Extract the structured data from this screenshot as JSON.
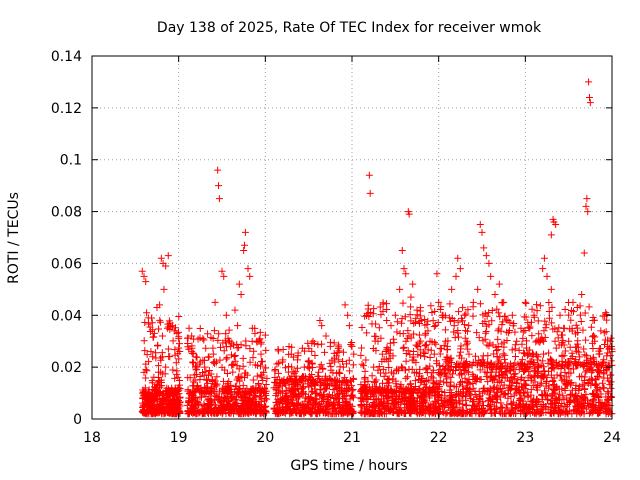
{
  "chart_data": {
    "type": "scatter",
    "title": "Day 138 of 2025, Rate Of TEC Index for receiver wmok",
    "xlabel": "GPS time / hours",
    "ylabel": "ROTI / TECUs",
    "xlim": [
      18,
      24
    ],
    "ylim": [
      0,
      0.14
    ],
    "x_ticks": [
      18,
      19,
      20,
      21,
      22,
      23,
      24
    ],
    "x_tick_labels": [
      "18",
      "19",
      "20",
      "21",
      "22",
      "23",
      "24"
    ],
    "y_ticks": [
      0,
      0.02,
      0.04,
      0.06,
      0.08,
      0.1,
      0.12,
      0.14
    ],
    "y_tick_labels": [
      "0",
      "0.02",
      "0.04",
      "0.06",
      "0.08",
      "0.1",
      "0.12",
      "0.14"
    ],
    "grid": true,
    "marker": "plus",
    "color": "#ff0000",
    "series": [
      {
        "points": [
          [
            18.58,
            0.057
          ],
          [
            18.6,
            0.055
          ],
          [
            18.62,
            0.053
          ],
          [
            18.6,
            0.018
          ],
          [
            18.63,
            0.041
          ],
          [
            18.65,
            0.039
          ],
          [
            18.68,
            0.026
          ],
          [
            18.7,
            0.024
          ],
          [
            18.72,
            0.033
          ],
          [
            18.75,
            0.043
          ],
          [
            18.78,
            0.044
          ],
          [
            18.8,
            0.062
          ],
          [
            18.82,
            0.06
          ],
          [
            18.85,
            0.059
          ],
          [
            18.88,
            0.063
          ],
          [
            18.83,
            0.05
          ],
          [
            18.87,
            0.035
          ],
          [
            18.9,
            0.037
          ],
          [
            18.93,
            0.036
          ],
          [
            18.95,
            0.034
          ],
          [
            18.98,
            0.033
          ],
          [
            19.0,
            0.031
          ],
          [
            18.75,
            0.012
          ],
          [
            18.65,
            0.01
          ],
          [
            18.7,
            0.008
          ],
          [
            18.9,
            0.011
          ],
          [
            18.95,
            0.009
          ],
          [
            19.0,
            0.012
          ],
          [
            18.85,
            0.02
          ],
          [
            18.8,
            0.015
          ],
          [
            19.12,
            0.035
          ],
          [
            19.15,
            0.032
          ],
          [
            19.2,
            0.019
          ],
          [
            19.25,
            0.022
          ],
          [
            19.3,
            0.02
          ],
          [
            19.35,
            0.024
          ],
          [
            19.4,
            0.025
          ],
          [
            19.42,
            0.045
          ],
          [
            19.45,
            0.096
          ],
          [
            19.46,
            0.09
          ],
          [
            19.47,
            0.085
          ],
          [
            19.5,
            0.057
          ],
          [
            19.52,
            0.055
          ],
          [
            19.55,
            0.04
          ],
          [
            19.58,
            0.03
          ],
          [
            19.6,
            0.028
          ],
          [
            19.65,
            0.042
          ],
          [
            19.68,
            0.036
          ],
          [
            19.7,
            0.052
          ],
          [
            19.72,
            0.048
          ],
          [
            19.75,
            0.065
          ],
          [
            19.76,
            0.067
          ],
          [
            19.77,
            0.072
          ],
          [
            19.8,
            0.058
          ],
          [
            19.82,
            0.055
          ],
          [
            19.85,
            0.035
          ],
          [
            19.88,
            0.033
          ],
          [
            19.9,
            0.03
          ],
          [
            19.95,
            0.025
          ],
          [
            19.98,
            0.018
          ],
          [
            20.1,
            0.012
          ],
          [
            20.15,
            0.01
          ],
          [
            20.2,
            0.014
          ],
          [
            20.3,
            0.025
          ],
          [
            20.35,
            0.015
          ],
          [
            20.45,
            0.02
          ],
          [
            20.55,
            0.03
          ],
          [
            20.63,
            0.038
          ],
          [
            20.65,
            0.036
          ],
          [
            20.7,
            0.032
          ],
          [
            20.75,
            0.028
          ],
          [
            20.8,
            0.022
          ],
          [
            20.85,
            0.018
          ],
          [
            20.9,
            0.02
          ],
          [
            20.92,
            0.044
          ],
          [
            20.95,
            0.04
          ],
          [
            20.97,
            0.036
          ],
          [
            21.0,
            0.028
          ],
          [
            21.02,
            0.025
          ],
          [
            21.12,
            0.008
          ],
          [
            21.15,
            0.016
          ],
          [
            21.2,
            0.094
          ],
          [
            21.21,
            0.087
          ],
          [
            21.25,
            0.02
          ],
          [
            21.3,
            0.03
          ],
          [
            21.35,
            0.025
          ],
          [
            21.4,
            0.038
          ],
          [
            21.45,
            0.036
          ],
          [
            21.5,
            0.04
          ],
          [
            21.55,
            0.05
          ],
          [
            21.58,
            0.065
          ],
          [
            21.6,
            0.058
          ],
          [
            21.62,
            0.056
          ],
          [
            21.65,
            0.08
          ],
          [
            21.66,
            0.079
          ],
          [
            21.68,
            0.047
          ],
          [
            21.7,
            0.052
          ],
          [
            21.75,
            0.042
          ],
          [
            21.8,
            0.038
          ],
          [
            21.85,
            0.033
          ],
          [
            21.9,
            0.03
          ],
          [
            21.95,
            0.025
          ],
          [
            21.98,
            0.056
          ],
          [
            22.0,
            0.045
          ],
          [
            22.05,
            0.04
          ],
          [
            22.08,
            0.03
          ],
          [
            22.1,
            0.028
          ],
          [
            22.15,
            0.05
          ],
          [
            22.18,
            0.038
          ],
          [
            22.2,
            0.055
          ],
          [
            22.22,
            0.062
          ],
          [
            22.25,
            0.058
          ],
          [
            22.3,
            0.04
          ],
          [
            22.35,
            0.025
          ],
          [
            22.4,
            0.045
          ],
          [
            22.45,
            0.05
          ],
          [
            22.48,
            0.075
          ],
          [
            22.5,
            0.072
          ],
          [
            22.52,
            0.066
          ],
          [
            22.55,
            0.063
          ],
          [
            22.58,
            0.06
          ],
          [
            22.6,
            0.055
          ],
          [
            22.65,
            0.048
          ],
          [
            22.7,
            0.052
          ],
          [
            22.75,
            0.045
          ],
          [
            22.8,
            0.038
          ],
          [
            22.85,
            0.04
          ],
          [
            22.9,
            0.03
          ],
          [
            22.95,
            0.035
          ],
          [
            23.0,
            0.045
          ],
          [
            23.05,
            0.035
          ],
          [
            23.1,
            0.04
          ],
          [
            23.15,
            0.03
          ],
          [
            23.2,
            0.058
          ],
          [
            23.22,
            0.062
          ],
          [
            23.25,
            0.055
          ],
          [
            23.3,
            0.05
          ],
          [
            23.32,
            0.077
          ],
          [
            23.33,
            0.076
          ],
          [
            23.35,
            0.075
          ],
          [
            23.3,
            0.071
          ],
          [
            23.4,
            0.04
          ],
          [
            23.45,
            0.035
          ],
          [
            23.5,
            0.03
          ],
          [
            23.55,
            0.045
          ],
          [
            23.6,
            0.043
          ],
          [
            23.65,
            0.048
          ],
          [
            23.68,
            0.064
          ],
          [
            23.7,
            0.082
          ],
          [
            23.71,
            0.085
          ],
          [
            23.72,
            0.08
          ],
          [
            23.73,
            0.13
          ],
          [
            23.74,
            0.124
          ],
          [
            23.75,
            0.122
          ],
          [
            23.78,
            0.038
          ],
          [
            23.8,
            0.03
          ],
          [
            23.85,
            0.025
          ],
          [
            23.9,
            0.022
          ],
          [
            23.95,
            0.028
          ],
          [
            23.98,
            0.03
          ],
          [
            24.0,
            0.026
          ]
        ]
      }
    ],
    "clusters": [
      {
        "x_range": [
          18.58,
          19.02
        ],
        "y_min": 0.002,
        "y_max": 0.012,
        "count": 320,
        "seed": 11
      },
      {
        "x_range": [
          18.6,
          19.02
        ],
        "y_min": 0.01,
        "y_max": 0.04,
        "count": 90,
        "seed": 12
      },
      {
        "x_range": [
          19.1,
          20.02
        ],
        "y_min": 0.002,
        "y_max": 0.012,
        "count": 420,
        "seed": 21
      },
      {
        "x_range": [
          19.1,
          20.02
        ],
        "y_min": 0.01,
        "y_max": 0.035,
        "count": 200,
        "seed": 22
      },
      {
        "x_range": [
          20.1,
          21.02
        ],
        "y_min": 0.002,
        "y_max": 0.016,
        "count": 480,
        "seed": 31
      },
      {
        "x_range": [
          20.1,
          21.02
        ],
        "y_min": 0.014,
        "y_max": 0.03,
        "count": 120,
        "seed": 32
      },
      {
        "x_range": [
          21.1,
          22.0
        ],
        "y_min": 0.002,
        "y_max": 0.012,
        "count": 380,
        "seed": 41
      },
      {
        "x_range": [
          21.1,
          22.0
        ],
        "y_min": 0.01,
        "y_max": 0.045,
        "count": 260,
        "seed": 42
      },
      {
        "x_range": [
          22.0,
          24.0
        ],
        "y_min": 0.002,
        "y_max": 0.022,
        "count": 900,
        "seed": 51
      },
      {
        "x_range": [
          22.0,
          24.0
        ],
        "y_min": 0.02,
        "y_max": 0.045,
        "count": 360,
        "seed": 52
      }
    ]
  }
}
